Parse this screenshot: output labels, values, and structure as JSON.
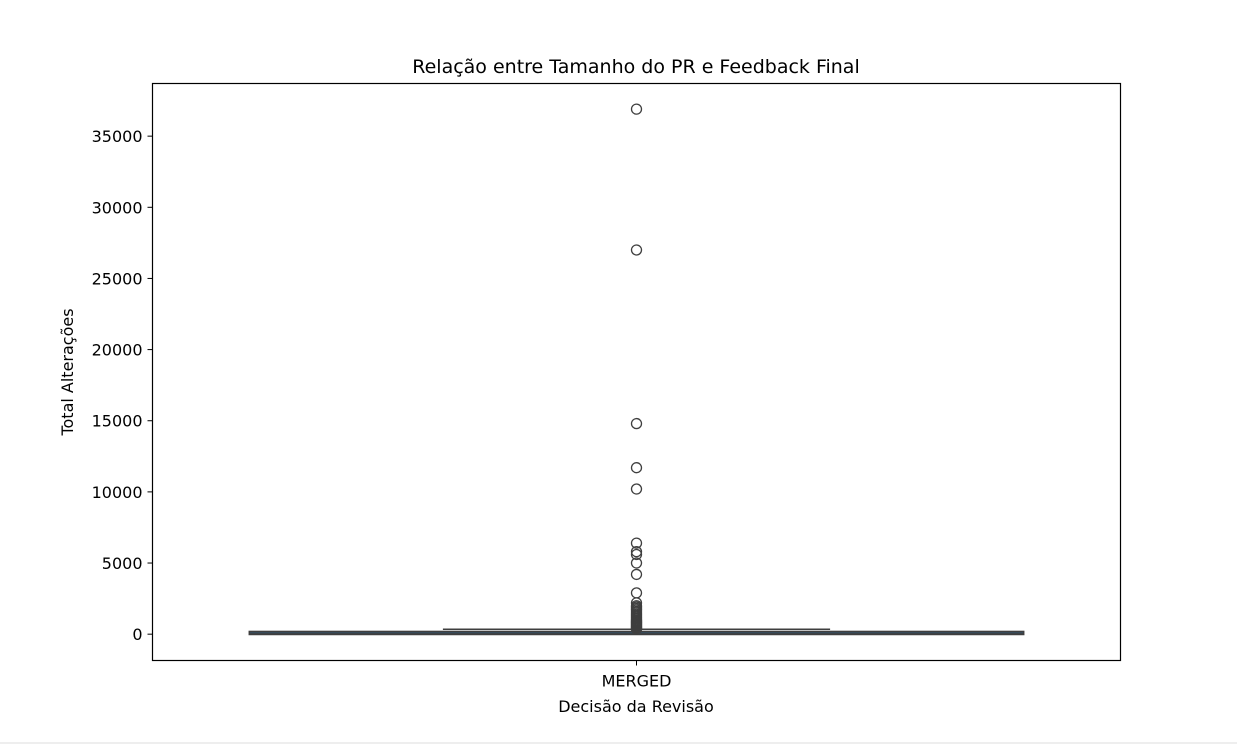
{
  "chart_data": {
    "type": "box",
    "title": "Relação entre Tamanho do PR e Feedback Final",
    "xlabel": "Decisão da Revisão",
    "ylabel": "Total Alterações",
    "categories": [
      "MERGED"
    ],
    "ylim": [
      -1850,
      38700
    ],
    "yticks": [
      0,
      5000,
      10000,
      15000,
      20000,
      25000,
      30000,
      35000
    ],
    "grid": false,
    "legend": "none",
    "colors": {
      "box_line": "#3f3f3f",
      "box_fill": "#1f77b4",
      "axis": "#000000"
    },
    "boxes": [
      {
        "category": "MERGED",
        "whisker_low": 0,
        "q1": 20,
        "median": 70,
        "q3": 150,
        "whisker_high": 350,
        "outliers": [
          36900,
          27000,
          14800,
          11700,
          10200,
          6400,
          5800,
          5600,
          5000,
          4200,
          2900,
          2200,
          2000,
          1900,
          1800,
          1700,
          1600,
          1500,
          1400,
          1300,
          1200,
          1100,
          1000,
          950,
          900,
          850,
          800,
          750,
          700,
          650,
          600,
          550,
          500,
          450,
          400,
          380
        ]
      }
    ]
  }
}
